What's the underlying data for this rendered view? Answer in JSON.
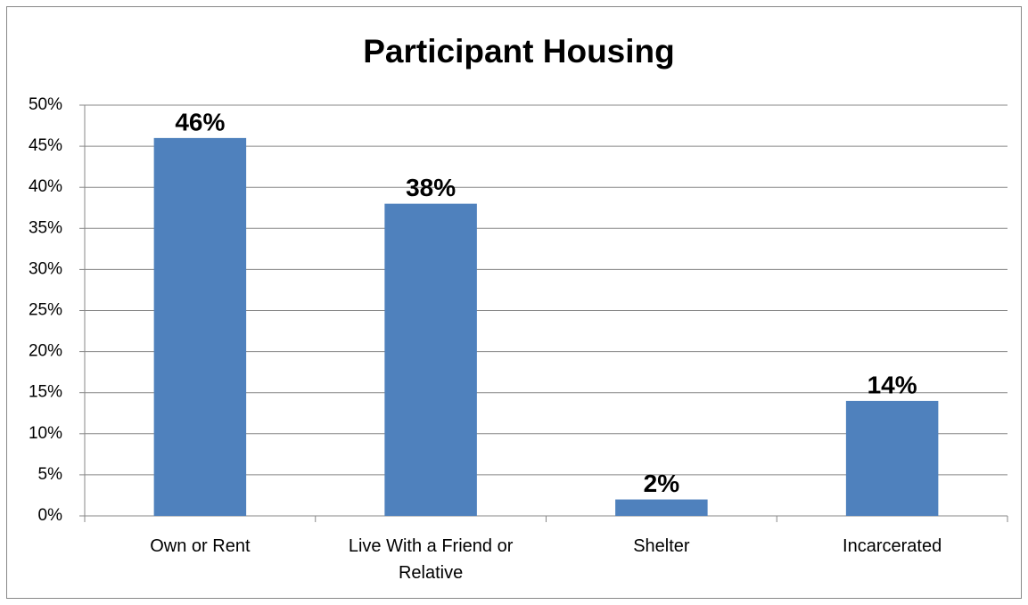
{
  "chart_data": {
    "type": "bar",
    "title": "Participant Housing",
    "categories": [
      "Own or Rent",
      "Live With a Friend or Relative",
      "Shelter",
      "Incarcerated"
    ],
    "values": [
      46,
      38,
      2,
      14
    ],
    "value_labels": [
      "46%",
      "38%",
      "2%",
      "14%"
    ],
    "color": "#4f81bd",
    "ylim": [
      0,
      50
    ],
    "yticks": [
      {
        "value": 0,
        "label": "0%"
      },
      {
        "value": 5,
        "label": "5%"
      },
      {
        "value": 10,
        "label": "10%"
      },
      {
        "value": 15,
        "label": "15%"
      },
      {
        "value": 20,
        "label": "20%"
      },
      {
        "value": 25,
        "label": "25%"
      },
      {
        "value": 30,
        "label": "30%"
      },
      {
        "value": 35,
        "label": "35%"
      },
      {
        "value": 40,
        "label": "40%"
      },
      {
        "value": 45,
        "label": "45%"
      },
      {
        "value": 50,
        "label": "50%"
      }
    ],
    "grid": true
  }
}
